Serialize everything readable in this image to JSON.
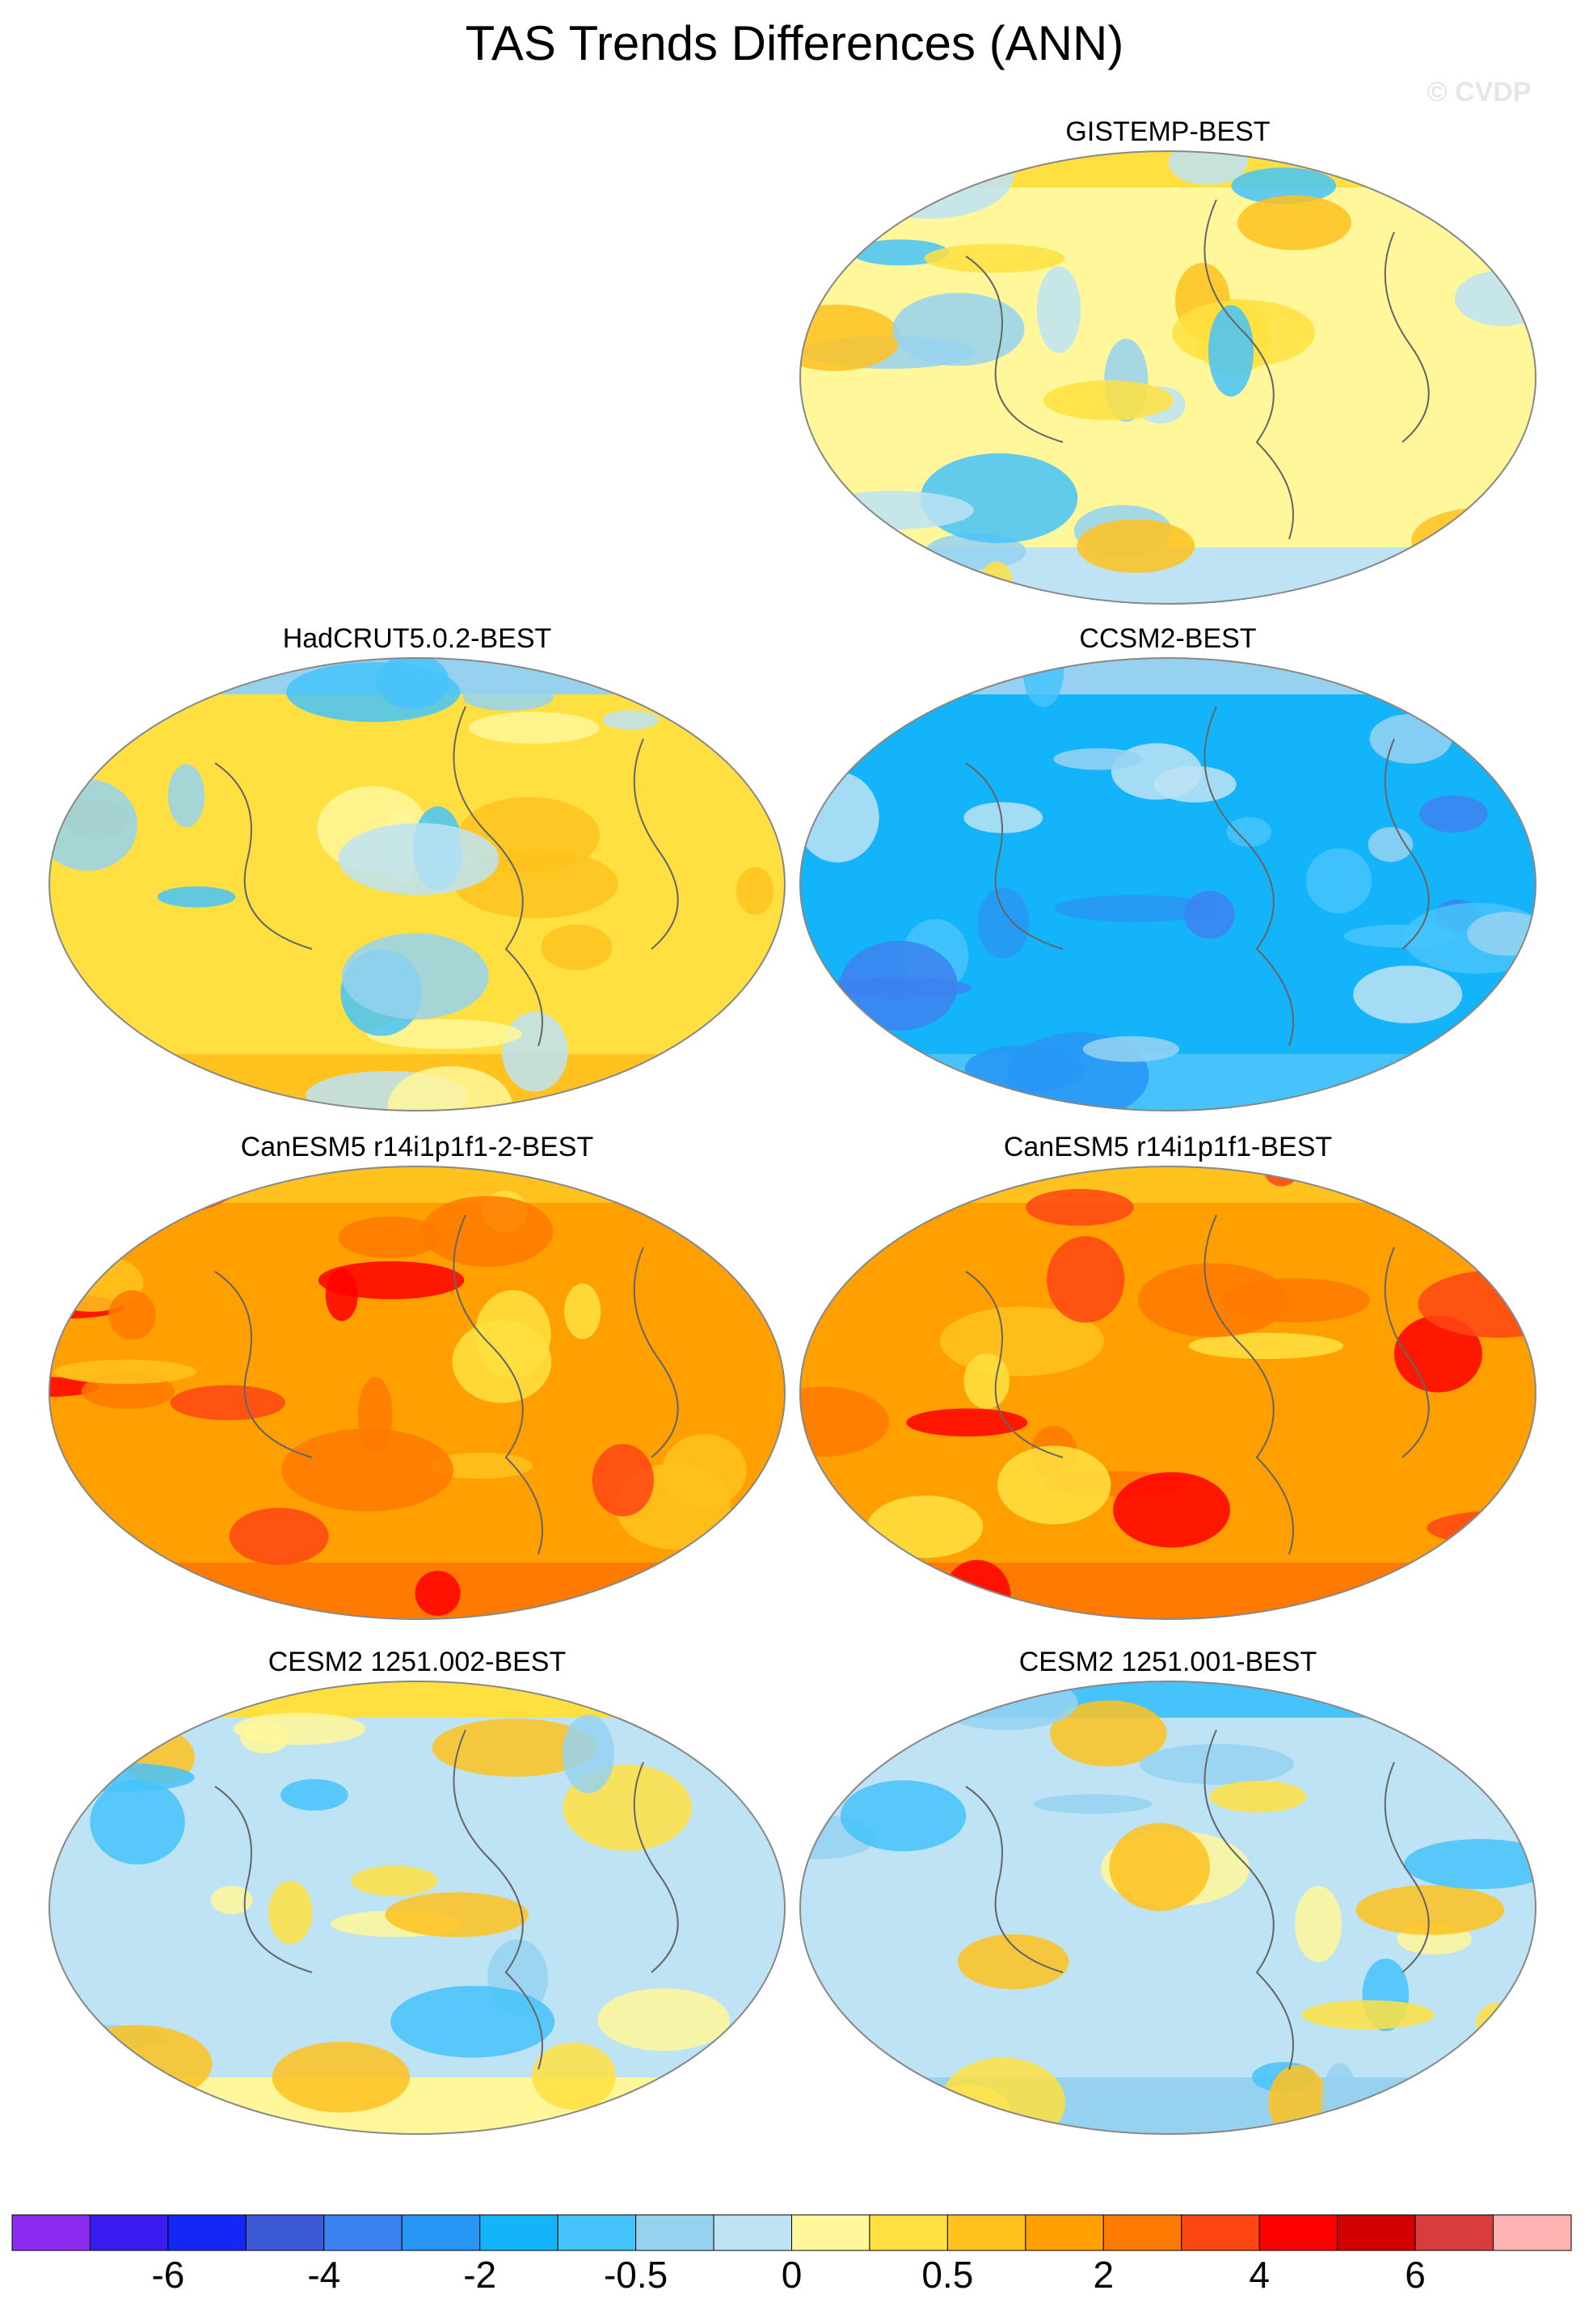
{
  "title": "TAS Trends Differences (ANN)",
  "watermark": "© CVDP",
  "panels": [
    {
      "title": "GISTEMP-BEST"
    },
    {
      "title": "HadCRUT5.0.2-BEST"
    },
    {
      "title": "CCSM2-BEST"
    },
    {
      "title": "CanESM5 r14i1p1f1-2-BEST"
    },
    {
      "title": "CanESM5 r14i1p1f1-BEST"
    },
    {
      "title": "CESM2 1251.002-BEST"
    },
    {
      "title": "CESM2 1251.001-BEST"
    }
  ],
  "colorbar": {
    "colors": [
      "#8c2cf0",
      "#3b1cf0",
      "#1428f5",
      "#3c5ad6",
      "#3c82f0",
      "#2896f5",
      "#14b4fa",
      "#46c3fa",
      "#96d2f0",
      "#bde3f5",
      "#fff799",
      "#ffe040",
      "#ffc21e",
      "#ff9f00",
      "#ff7a00",
      "#ff4614",
      "#ff0000",
      "#d20000",
      "#d83c3c",
      "#ffb4b4"
    ],
    "ticks": [
      -6,
      -4,
      -2,
      -0.5,
      0,
      0.5,
      2,
      4,
      6
    ]
  }
}
